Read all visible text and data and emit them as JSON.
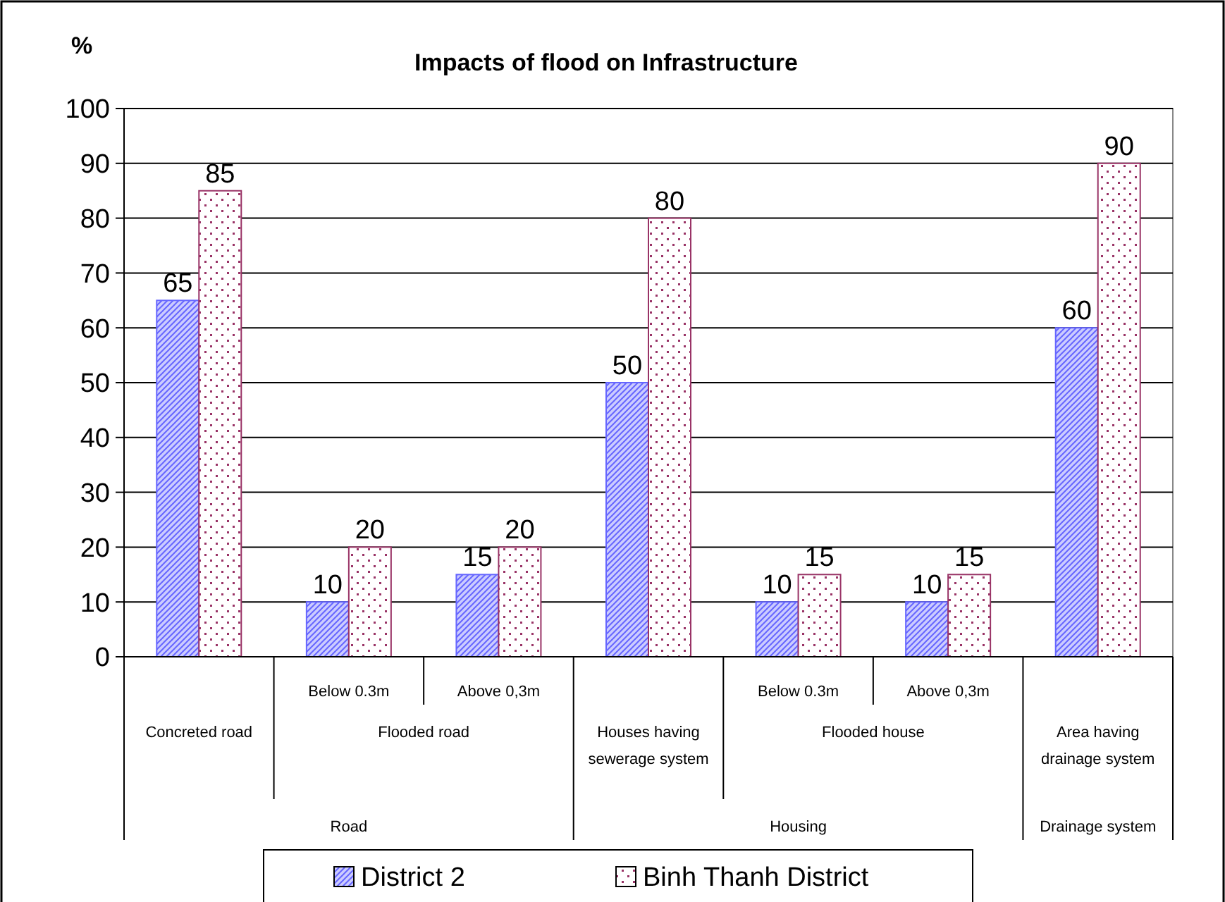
{
  "chart_data": {
    "type": "bar",
    "title": "Impacts of flood on Infrastructure",
    "ylabel": "%",
    "categories": [
      "Concreted road",
      "Below 0.3m",
      "Above 0,3m",
      "Houses having sewerage system",
      "Below 0.3m",
      "Above 0,3m",
      "Area having drainage system"
    ],
    "annotations": [
      "Flooded road",
      "Flooded house",
      "Road",
      "Housing",
      "Drainage system"
    ],
    "series": [
      {
        "name": "District 2",
        "color": "#6666ff",
        "values": [
          65,
          10,
          15,
          50,
          10,
          10,
          60
        ]
      },
      {
        "name": "Binh Thanh District",
        "color": "#993366",
        "values": [
          85,
          20,
          20,
          80,
          15,
          15,
          90
        ]
      }
    ],
    "ylim": [
      0,
      100
    ],
    "yticks": [
      0,
      10,
      20,
      30,
      40,
      50,
      60,
      70,
      80,
      90,
      100
    ],
    "grid": "y",
    "data_labels": true,
    "legend": "bottom"
  }
}
